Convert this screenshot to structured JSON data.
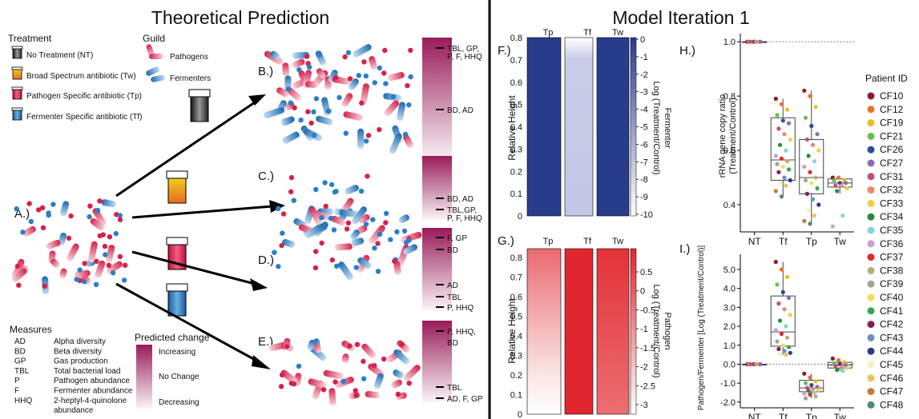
{
  "left": {
    "title": "Theoretical Prediction",
    "treatment_header": "Treatment",
    "treatments": [
      {
        "label": "No Treatment (NT)",
        "color": "#333333"
      },
      {
        "label": "Broad Spectrum antibiotic (Tw)",
        "color": "#e8b020"
      },
      {
        "label": "Pathogen Specific antibiotic (Tp)",
        "color": "#d6204a"
      },
      {
        "label": "Fermenter Specific antibiotic (Tf)",
        "color": "#2a7fc6"
      }
    ],
    "guild_header": "Guild",
    "guilds": [
      {
        "label": "Pathogens",
        "color": "#d6204a"
      },
      {
        "label": "Fermenters",
        "color": "#2a7fc6"
      }
    ],
    "panel_labels": [
      "A.)",
      "B.)",
      "C.)",
      "D.)",
      "E.)"
    ],
    "measures_header": "Measures",
    "measures": [
      {
        "code": "AD",
        "desc": "Alpha diversity"
      },
      {
        "code": "BD",
        "desc": "Beta diversity"
      },
      {
        "code": "GP",
        "desc": "Gas production"
      },
      {
        "code": "TBL",
        "desc": "Total bacterial load"
      },
      {
        "code": "P",
        "desc": "Pathogen abundance"
      },
      {
        "code": "F",
        "desc": "Fermenter abundance"
      },
      {
        "code": "HHQ",
        "desc": "2-heptyl-4-quinolone"
      },
      {
        "code": "",
        "desc": "abundance"
      }
    ],
    "predicted_header": "Predicted change",
    "predicted_levels": [
      "Increasing",
      "No Change",
      "Decreasing"
    ],
    "bars": [
      {
        "marks": [
          "TBL, GP,",
          "P, F, HHQ",
          "BD, AD"
        ]
      },
      {
        "marks": [
          "BD, AD",
          "TBL,GP,",
          "P, F, HHQ"
        ]
      },
      {
        "marks": [
          "F, GP",
          "BD",
          "AD",
          "TBL",
          "P,  HHQ"
        ]
      },
      {
        "marks": [
          "P, HHQ,",
          "BD",
          "TBL",
          "AD, F, GP"
        ]
      }
    ]
  },
  "right": {
    "title": "Model Iteration 1",
    "panel_F": "F.)",
    "panel_G": "G.)",
    "panel_H": "H.)",
    "panel_I": "I.)",
    "heat_cols": [
      "Tp",
      "Tf",
      "Tw"
    ],
    "heat_ylabel": "Relative Height",
    "heat_yticks": [
      "0",
      "0.1",
      "0.2",
      "0.3",
      "0.4",
      "0.5",
      "0.6",
      "0.7",
      "0.8"
    ],
    "fermenter_cbar_label": "Fermenter",
    "fermenter_cbar_sub": "Log (Treatment/Control)",
    "fermenter_cbar_ticks": [
      "0",
      "-1",
      "-2",
      "-3",
      "-4",
      "-5",
      "-6",
      "-7",
      "-8",
      "-9",
      "-10"
    ],
    "pathogen_cbar_label": "Pathogen",
    "pathogen_cbar_sub": "Log (Treatment/Control)",
    "pathogen_cbar_ticks": [
      "0.5",
      "0",
      "-0.5",
      "-1",
      "-1.5",
      "-2",
      "-2.5",
      "-3"
    ],
    "legend_title": "Patient ID",
    "patients": [
      {
        "id": "CF10",
        "color": "#8b1a2b"
      },
      {
        "id": "CF12",
        "color": "#e8742a"
      },
      {
        "id": "CF19",
        "color": "#e8c020"
      },
      {
        "id": "CF21",
        "color": "#6bbf4a"
      },
      {
        "id": "CF26",
        "color": "#2a4a9a"
      },
      {
        "id": "CF27",
        "color": "#8a6ab8"
      },
      {
        "id": "CF31",
        "color": "#c84a7a"
      },
      {
        "id": "CF32",
        "color": "#e88a6a"
      },
      {
        "id": "CF33",
        "color": "#f0d040"
      },
      {
        "id": "CF34",
        "color": "#2a8a3a"
      },
      {
        "id": "CF35",
        "color": "#8ad0d8"
      },
      {
        "id": "CF36",
        "color": "#c8a0d0"
      },
      {
        "id": "CF37",
        "color": "#e02a2a"
      },
      {
        "id": "CF38",
        "color": "#b8b070"
      },
      {
        "id": "CF39",
        "color": "#9aa890"
      },
      {
        "id": "CF40",
        "color": "#f0e050"
      },
      {
        "id": "CF41",
        "color": "#3aa84a"
      },
      {
        "id": "CF42",
        "color": "#8a1a5a"
      },
      {
        "id": "CF43",
        "color": "#6a90c8"
      },
      {
        "id": "CF44",
        "color": "#2a3a80"
      },
      {
        "id": "CF45",
        "color": "#f5f0c0"
      },
      {
        "id": "CF46",
        "color": "#f0c060"
      },
      {
        "id": "CF47",
        "color": "#c87a3a"
      },
      {
        "id": "CF48",
        "color": "#4a8a7a"
      }
    ]
  },
  "chart_data": [
    {
      "type": "heatmap",
      "panel": "F.)",
      "columns": [
        "Tp",
        "Tf",
        "Tw"
      ],
      "ylabel": "Relative Height",
      "ylim": [
        0,
        0.8
      ],
      "colorbar_label": "Fermenter Log (Treatment/Control)",
      "colorbar_range": [
        -10,
        0
      ],
      "values_by_height": {
        "heights": [
          0,
          0.2,
          0.4,
          0.6,
          0.8
        ],
        "Tp": [
          0,
          0,
          0,
          0,
          0
        ],
        "Tf": [
          -8,
          -8,
          -8,
          -7.5,
          -6
        ],
        "Tw": [
          0,
          0,
          0,
          0,
          0
        ]
      }
    },
    {
      "type": "heatmap",
      "panel": "G.)",
      "columns": [
        "Tp",
        "Tf",
        "Tw"
      ],
      "ylabel": "Relative Height",
      "ylim": [
        0,
        0.8
      ],
      "colorbar_label": "Pathogen Log (Treatment/Control)",
      "colorbar_range": [
        -3.3,
        0.8
      ],
      "values_by_height": {
        "heights": [
          0,
          0.2,
          0.4,
          0.6,
          0.8
        ],
        "Tp": [
          -3.3,
          -2.5,
          -1.5,
          -0.7,
          0
        ],
        "Tf": [
          0.6,
          0.6,
          0.6,
          0.6,
          0.6
        ],
        "Tw": [
          0.1,
          0.2,
          0.35,
          0.5,
          0.6
        ]
      }
    },
    {
      "type": "scatter",
      "panel": "H.)",
      "ylabel": "rRNA gene copy ratio (Treatment/Control)",
      "categories": [
        "NT",
        "Tf",
        "Tp",
        "Tw"
      ],
      "ylim": [
        0.3,
        1.03
      ],
      "yticks": [
        0.4,
        0.6,
        0.8,
        1.0
      ],
      "reference_line": 1.0,
      "boxes": [
        {
          "cat": "NT",
          "q1": 1.0,
          "median": 1.0,
          "q3": 1.0,
          "min": 1.0,
          "max": 1.0
        },
        {
          "cat": "Tf",
          "q1": 0.49,
          "median": 0.565,
          "q3": 0.72,
          "min": 0.43,
          "max": 0.79
        },
        {
          "cat": "Tp",
          "q1": 0.44,
          "median": 0.5,
          "q3": 0.64,
          "min": 0.33,
          "max": 0.82
        },
        {
          "cat": "Tw",
          "q1": 0.465,
          "median": 0.48,
          "q3": 0.495,
          "min": 0.44,
          "max": 0.5
        }
      ],
      "points": {
        "NT": [
          1.0,
          1.0,
          1.0,
          1.0,
          1.0,
          1.0,
          1.0,
          1.0
        ],
        "Tf": [
          0.79,
          0.77,
          0.75,
          0.73,
          0.71,
          0.7,
          0.68,
          0.66,
          0.64,
          0.62,
          0.6,
          0.58,
          0.57,
          0.56,
          0.55,
          0.54,
          0.53,
          0.52,
          0.5,
          0.49,
          0.48,
          0.47,
          0.45,
          0.43
        ],
        "Tp": [
          0.82,
          0.8,
          0.76,
          0.72,
          0.69,
          0.66,
          0.64,
          0.62,
          0.6,
          0.58,
          0.56,
          0.54,
          0.52,
          0.5,
          0.49,
          0.48,
          0.46,
          0.44,
          0.42,
          0.4,
          0.38,
          0.36,
          0.34,
          0.33
        ],
        "Tw": [
          0.5,
          0.5,
          0.49,
          0.49,
          0.48,
          0.48,
          0.47,
          0.47,
          0.46,
          0.45,
          0.36,
          0.32
        ]
      }
    },
    {
      "type": "scatter",
      "panel": "I.)",
      "ylabel": "Pathogen/Fermenter [Log (Treatment/Control)]",
      "categories": [
        "NT",
        "Tf",
        "Tp",
        "Tw"
      ],
      "ylim": [
        -2.3,
        5.8
      ],
      "yticks": [
        -2.0,
        -1.0,
        0.0,
        1.0,
        2.0,
        3.0,
        4.0,
        5.0
      ],
      "reference_line": 0.0,
      "boxes": [
        {
          "cat": "NT",
          "q1": 0,
          "median": 0,
          "q3": 0,
          "min": 0,
          "max": 0
        },
        {
          "cat": "Tf",
          "q1": 0.95,
          "median": 1.7,
          "q3": 3.6,
          "min": 0.5,
          "max": 5.4
        },
        {
          "cat": "Tp",
          "q1": -1.45,
          "median": -1.25,
          "q3": -0.85,
          "min": -1.8,
          "max": -0.5
        },
        {
          "cat": "Tw",
          "q1": -0.2,
          "median": -0.05,
          "q3": 0.1,
          "min": -0.35,
          "max": 0.3
        }
      ],
      "points": {
        "NT": [
          0,
          0,
          0,
          0,
          0,
          0,
          0,
          0
        ],
        "Tf": [
          5.4,
          5.0,
          4.6,
          4.2,
          3.8,
          3.5,
          3.2,
          2.9,
          2.6,
          2.3,
          2.0,
          1.8,
          1.6,
          1.4,
          1.2,
          1.0,
          0.9,
          0.8,
          0.7,
          0.6,
          0.55,
          0.5
        ],
        "Tp": [
          -0.5,
          -0.7,
          -0.9,
          -1.0,
          -1.1,
          -1.2,
          -1.25,
          -1.3,
          -1.35,
          -1.4,
          -1.5,
          -1.55,
          -1.6,
          -1.7,
          -1.8
        ],
        "Tw": [
          0.3,
          0.2,
          0.1,
          0.05,
          0,
          -0.05,
          -0.1,
          -0.15,
          -0.2,
          -0.3,
          -0.35
        ]
      }
    }
  ]
}
